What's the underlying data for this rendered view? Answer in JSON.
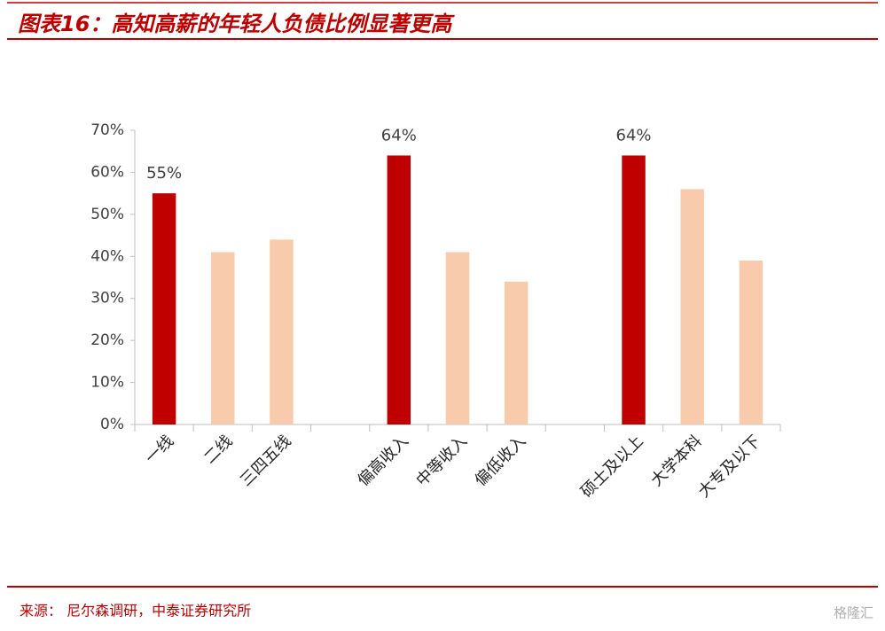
{
  "chart_data": {
    "type": "bar",
    "title": "图表16：高知高薪的年轻人负债比例显著更高",
    "source": "来源： 尼尔森调研，中泰证券研究所",
    "watermark": "格隆汇",
    "categories": [
      "一线",
      "二线",
      "三四五线",
      null,
      "偏高收入",
      "中等收入",
      "偏低收入",
      null,
      "硕士及以上",
      "大学本科",
      "大专及以下"
    ],
    "values": [
      55,
      41,
      44,
      null,
      64,
      41,
      34,
      null,
      64,
      56,
      39
    ],
    "value_labels": [
      "55%",
      null,
      null,
      null,
      "64%",
      null,
      null,
      null,
      "64%",
      null,
      null
    ],
    "colors": [
      "#c00000",
      "#f8cbad",
      "#f8cbad",
      null,
      "#c00000",
      "#f8cbad",
      "#f8cbad",
      null,
      "#c00000",
      "#f8cbad",
      "#f8cbad"
    ],
    "ylim": [
      0,
      70
    ],
    "yticks": [
      {
        "value": 0,
        "label": "0%"
      },
      {
        "value": 10,
        "label": "10%"
      },
      {
        "value": 20,
        "label": "20%"
      },
      {
        "value": 30,
        "label": "30%"
      },
      {
        "value": 40,
        "label": "40%"
      },
      {
        "value": 50,
        "label": "50%"
      },
      {
        "value": 60,
        "label": "60%"
      },
      {
        "value": 70,
        "label": "70%"
      }
    ],
    "grid": false
  }
}
